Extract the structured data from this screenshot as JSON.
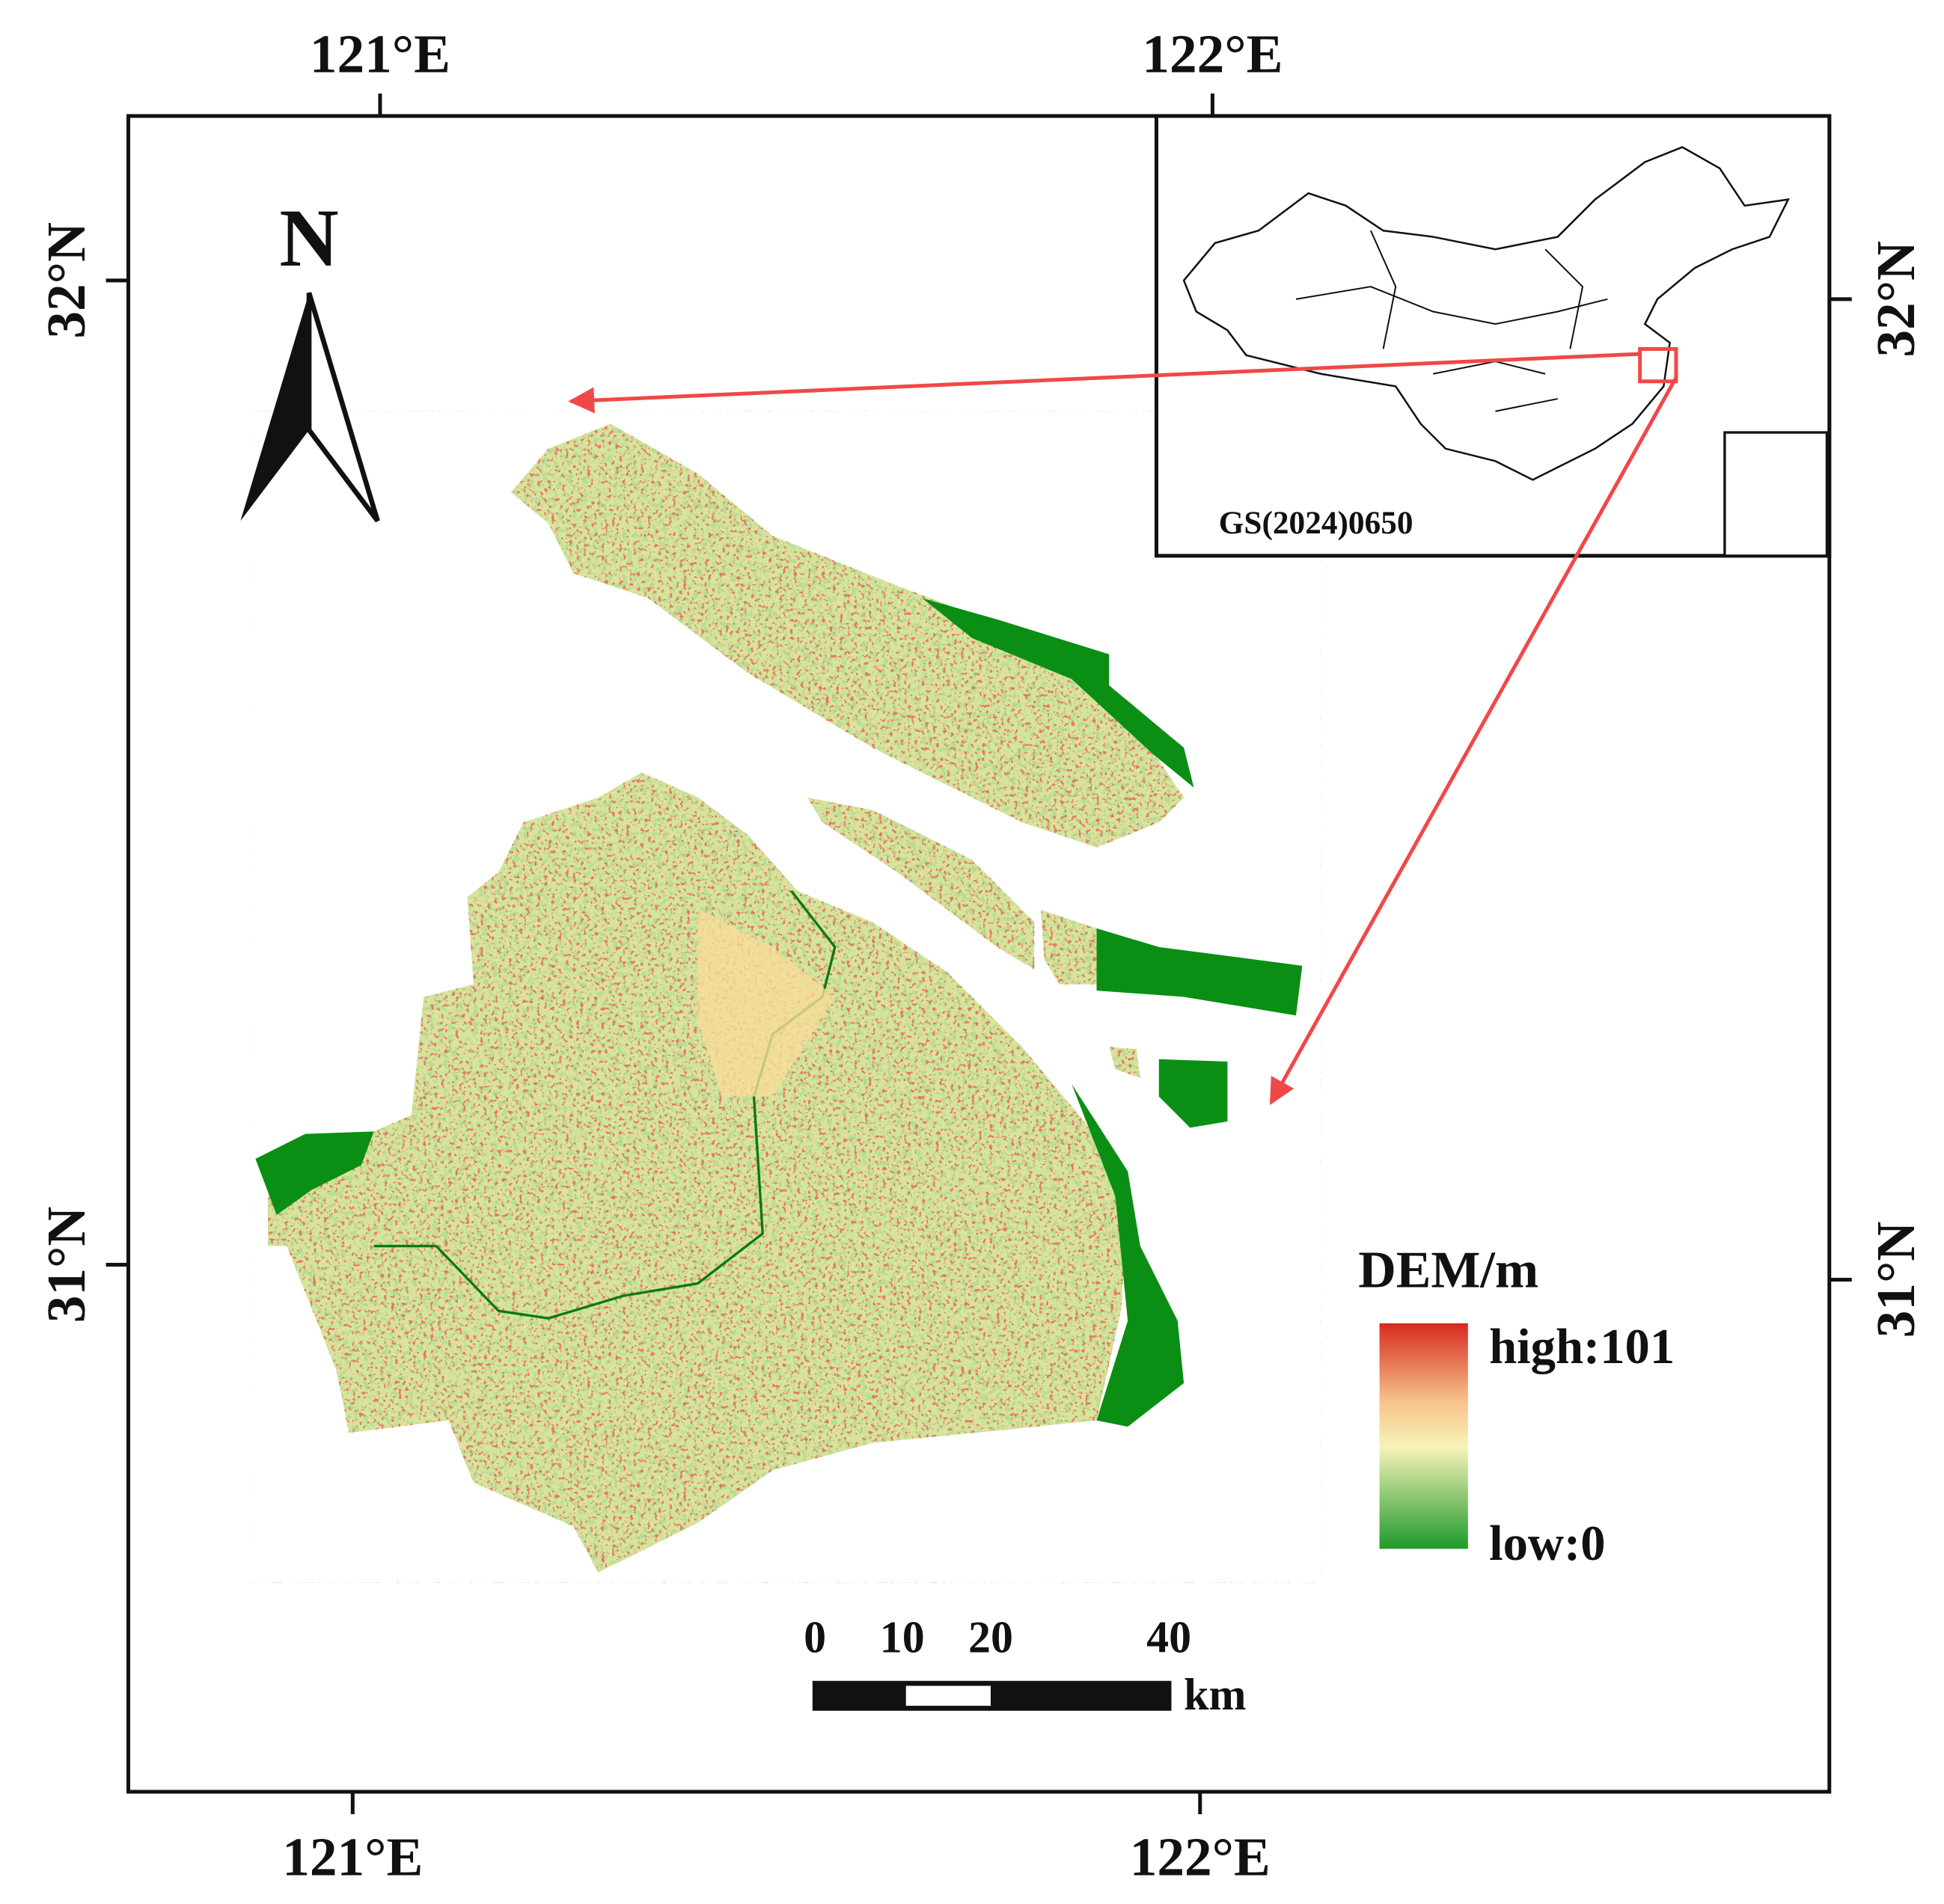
{
  "map": {
    "north_arrow": "N",
    "lon_labels": [
      "121°E",
      "122°E"
    ],
    "lat_labels": [
      "32°N",
      "31°N"
    ],
    "inset_label": "GS(2024)0650",
    "legend": {
      "title": "DEM/m",
      "high": "high:101",
      "low": "low:0"
    },
    "scale_bar": {
      "ticks": [
        "0",
        "10",
        "20",
        "40"
      ],
      "unit": "km"
    }
  }
}
